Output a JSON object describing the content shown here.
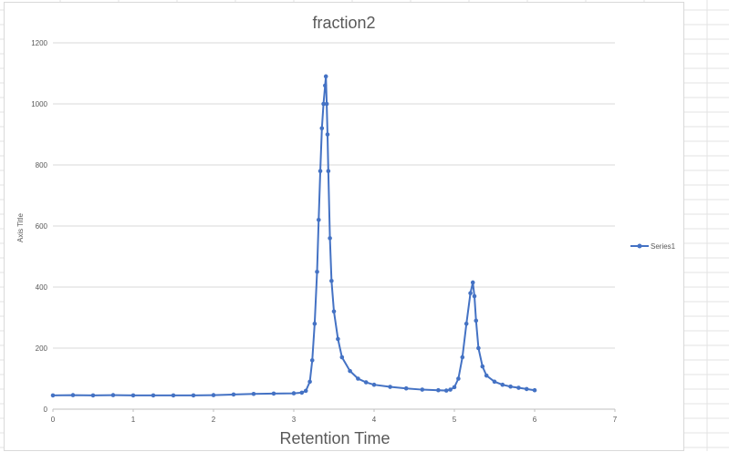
{
  "chart_data": {
    "type": "line",
    "title": "fraction2",
    "xlabel": "Retention Time",
    "ylabel": "Axis Title",
    "xlim": [
      0,
      7
    ],
    "ylim": [
      0,
      1200
    ],
    "xticks": [
      "0",
      "1",
      "2",
      "3",
      "4",
      "5",
      "6",
      "7"
    ],
    "yticks": [
      "0",
      "200",
      "400",
      "600",
      "800",
      "1000",
      "1200"
    ],
    "grid": "horizontal",
    "legend_position": "right",
    "colors": {
      "series": "#4472c4",
      "grid": "#d9d9d9",
      "axis": "#bfbfbf",
      "text": "#595959"
    },
    "series": [
      {
        "name": "Series1",
        "x": [
          0,
          0.25,
          0.5,
          0.75,
          1.0,
          1.25,
          1.5,
          1.75,
          2.0,
          2.25,
          2.5,
          2.75,
          3.0,
          3.1,
          3.15,
          3.2,
          3.23,
          3.26,
          3.29,
          3.31,
          3.33,
          3.35,
          3.37,
          3.39,
          3.4,
          3.41,
          3.42,
          3.43,
          3.45,
          3.47,
          3.5,
          3.55,
          3.6,
          3.7,
          3.8,
          3.9,
          4.0,
          4.2,
          4.4,
          4.6,
          4.8,
          4.9,
          4.95,
          5.0,
          5.05,
          5.1,
          5.15,
          5.2,
          5.23,
          5.25,
          5.27,
          5.3,
          5.35,
          5.4,
          5.5,
          5.6,
          5.7,
          5.8,
          5.9,
          6.0
        ],
        "y": [
          45,
          46,
          45,
          46,
          45,
          45,
          45,
          45,
          46,
          48,
          50,
          51,
          52,
          54,
          60,
          90,
          160,
          280,
          450,
          620,
          780,
          920,
          1000,
          1060,
          1090,
          1000,
          900,
          780,
          560,
          420,
          320,
          230,
          170,
          125,
          100,
          88,
          80,
          73,
          68,
          64,
          62,
          61,
          64,
          72,
          100,
          170,
          280,
          380,
          415,
          370,
          290,
          200,
          140,
          110,
          90,
          80,
          74,
          70,
          66,
          62
        ]
      }
    ]
  }
}
